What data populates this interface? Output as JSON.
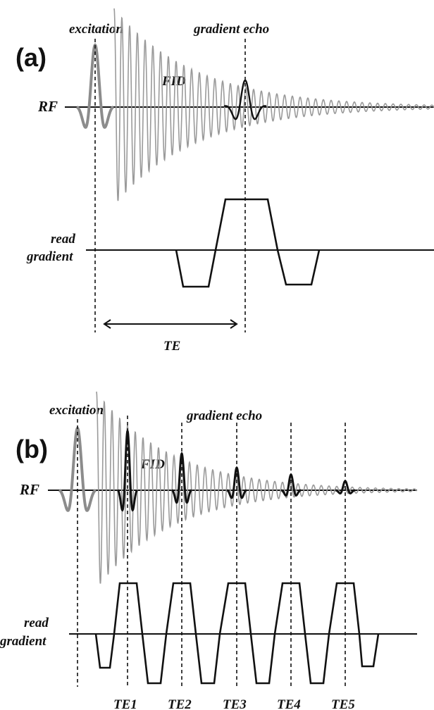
{
  "panels": {
    "a": {
      "label": "(a)",
      "excitation": "excitation",
      "gradient_echo": "gradient echo",
      "fid": "FID",
      "rf": "RF",
      "read": "read",
      "gradient": "gradient",
      "te": "TE"
    },
    "b": {
      "label": "(b)",
      "excitation": "excitation",
      "gradient_echo": "gradient echo",
      "fid": "FID",
      "rf": "RF",
      "read": "read",
      "gradient": "gradient",
      "te_labels": [
        "TE1",
        "TE2",
        "TE3",
        "TE4",
        "TE5"
      ]
    }
  },
  "colors": {
    "line": "#111111",
    "fid_signal": "#9a9a9a",
    "excitation_pulse": "#8c8c8c"
  }
}
